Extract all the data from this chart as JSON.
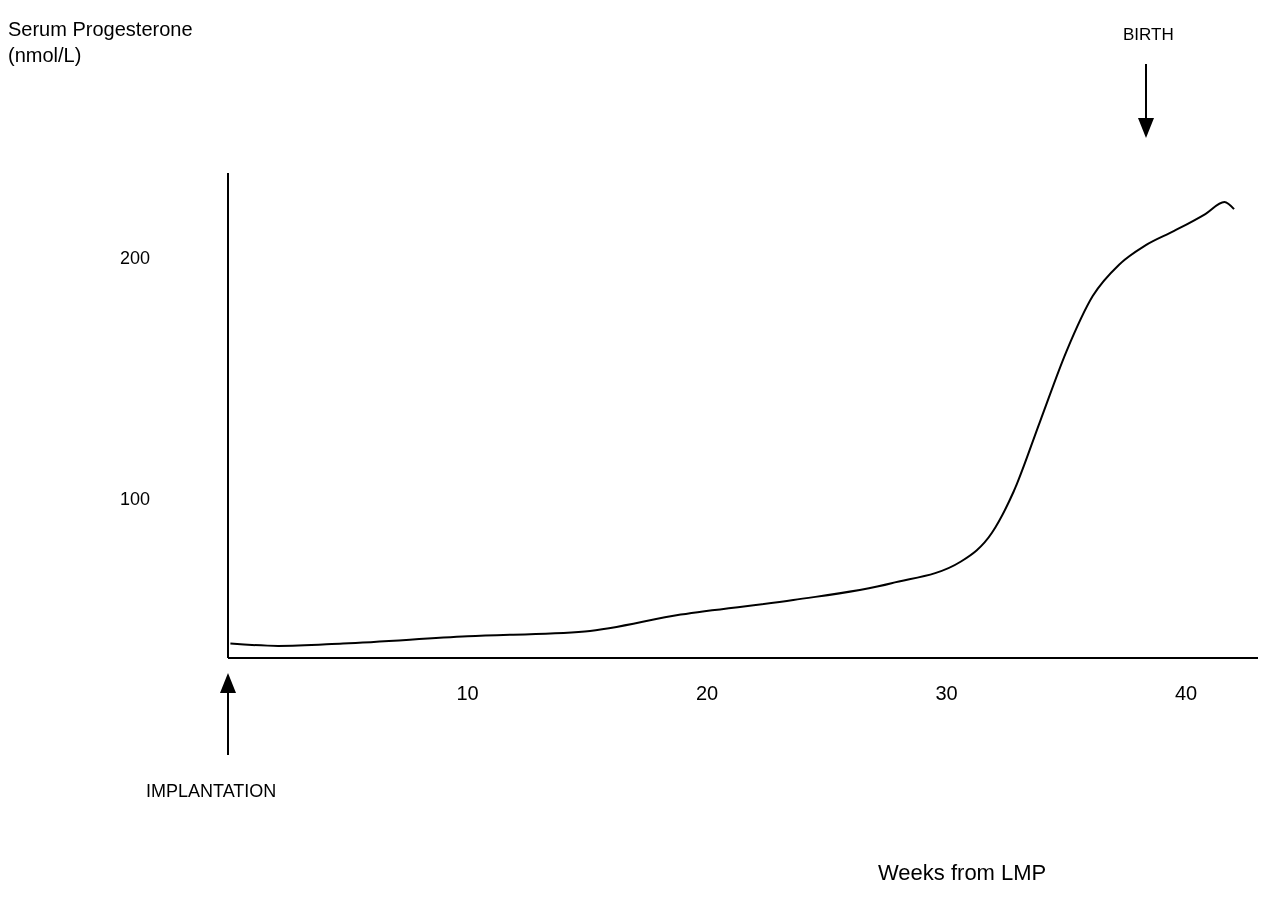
{
  "chart_data": {
    "type": "line",
    "x": [
      0.1,
      2.1,
      4.8,
      10,
      14.9,
      18.9,
      23.6,
      27.7,
      30.6,
      31.9,
      32.8,
      33.9,
      35.0,
      36.1,
      37.2,
      38.3,
      39.5,
      40.8,
      41.6,
      42.0
    ],
    "series": [
      {
        "color": "#000000",
        "values": [
          40,
          39,
          40,
          43,
          45,
          52,
          58,
          65,
          74,
          86,
          103,
          132,
          161,
          184,
          197,
          205,
          211,
          218,
          223,
          220
        ]
      }
    ],
    "xlim": [
      0,
      43
    ],
    "xticks": [
      10,
      20,
      30,
      40
    ],
    "ylim": [
      34,
      235
    ],
    "yticks": [
      100,
      200
    ],
    "annotations": [
      "Serum Progesterone\n(nmol/L)",
      "BIRTH",
      "IMPLANTATION",
      "Weeks from LMP"
    ],
    "grid": false,
    "legend": false,
    "marker": "none",
    "line_style": "solid"
  }
}
